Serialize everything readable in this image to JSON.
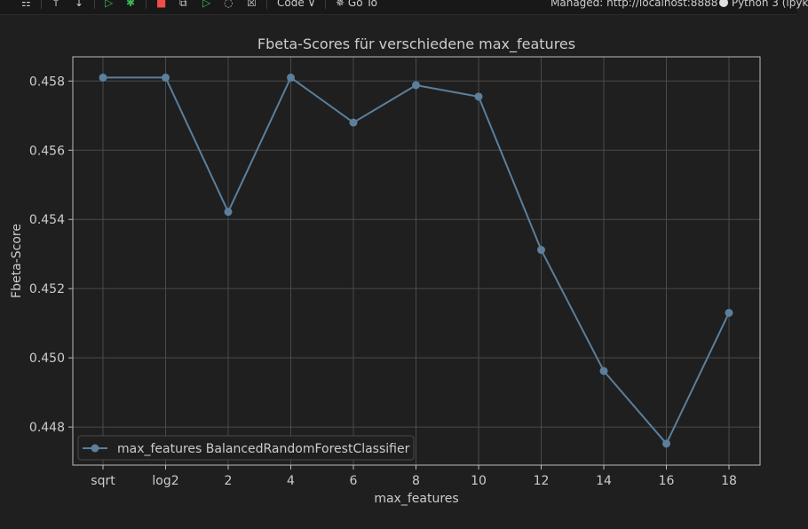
{
  "toolbar": {
    "items": [
      {
        "name": "document-icon",
        "glyph": "☷"
      },
      {
        "name": "arrow-up-icon",
        "glyph": "↑"
      },
      {
        "name": "arrow-down-icon",
        "glyph": "↓"
      },
      {
        "name": "run-above-icon",
        "glyph": "▷"
      },
      {
        "name": "debug-icon",
        "glyph": "✱"
      },
      {
        "name": "stop-icon",
        "glyph": "■"
      },
      {
        "name": "copy-icon",
        "glyph": "⧉"
      },
      {
        "name": "run-below-icon",
        "glyph": "▷"
      },
      {
        "name": "clear-icon",
        "glyph": "◌"
      },
      {
        "name": "delete-icon",
        "glyph": "☒"
      }
    ],
    "cell_type_label": "Code",
    "goto_label": "Go To",
    "server_label": "Managed: http://localhost:8888",
    "kernel_label": "Python 3 (ipyk"
  },
  "chart_data": {
    "type": "line",
    "title": "Fbeta-Scores für verschiedene max_features",
    "xlabel": "max_features",
    "ylabel": "Fbeta-Score",
    "categories": [
      "sqrt",
      "log2",
      "2",
      "4",
      "6",
      "8",
      "10",
      "12",
      "14",
      "16",
      "18"
    ],
    "series": [
      {
        "name": "max_features BalancedRandomForestClassifier",
        "values": [
          0.4581,
          0.4581,
          0.45422,
          0.4581,
          0.4568,
          0.45788,
          0.45755,
          0.45312,
          0.44962,
          0.44752,
          0.4513
        ],
        "color": "#5b7f9c",
        "marker": "circle"
      }
    ],
    "yticks": [
      "0.448",
      "0.450",
      "0.452",
      "0.454",
      "0.456",
      "0.458"
    ],
    "ylim": [
      0.4469,
      0.4587
    ],
    "grid": true,
    "legend_position": "lower-left",
    "background": "#1f1f1f",
    "grid_color": "#4a4a4a",
    "text_color": "#cccccc"
  }
}
